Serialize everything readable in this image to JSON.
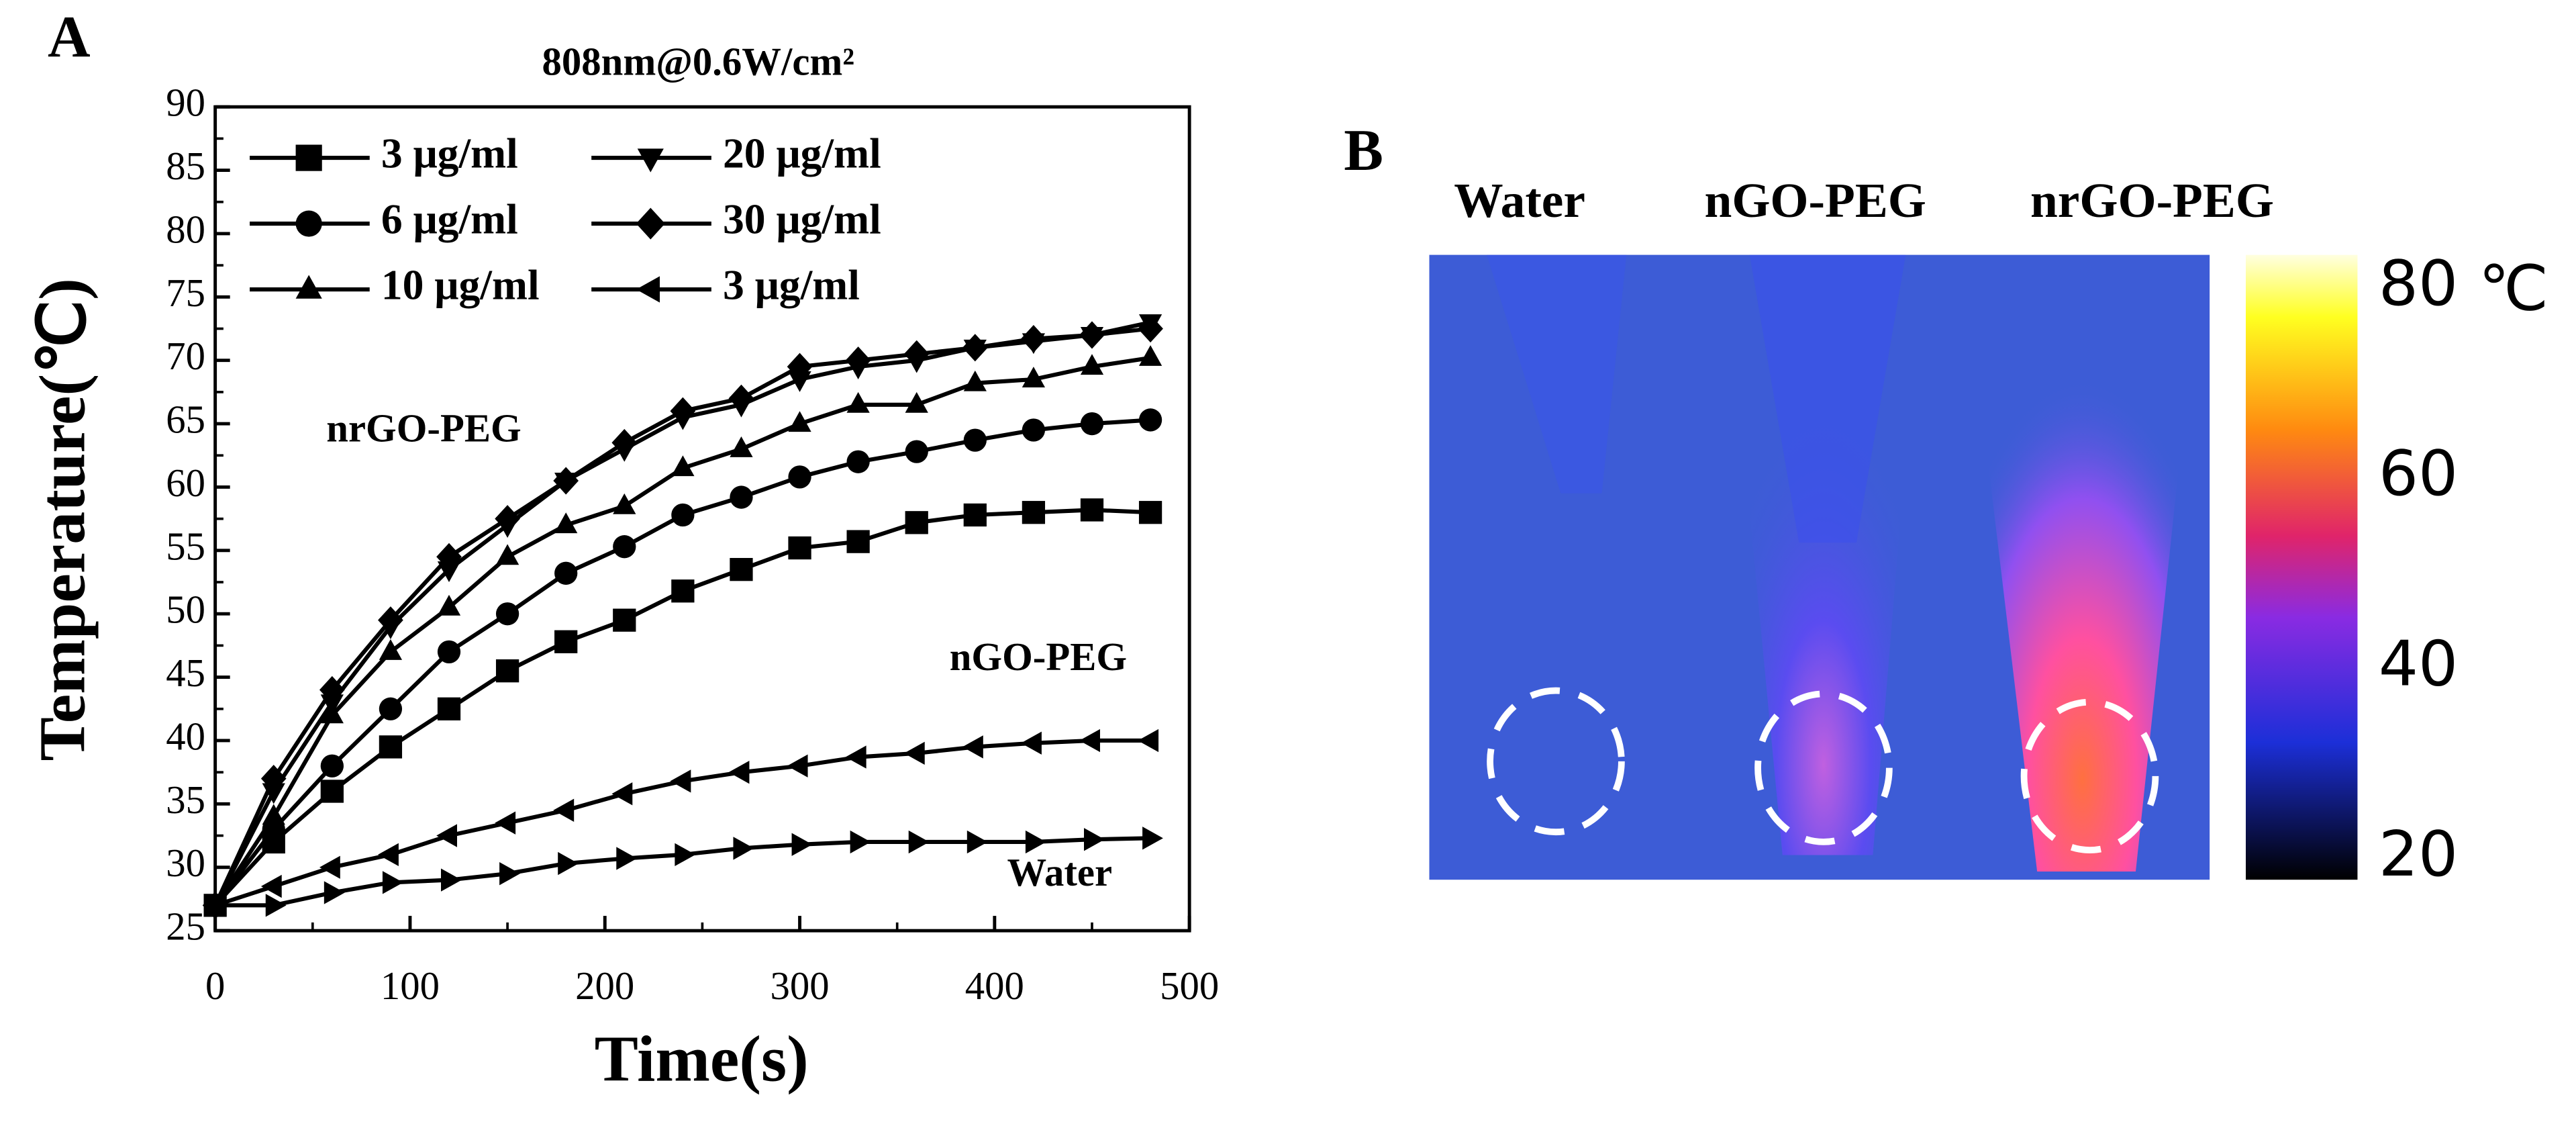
{
  "panel_label": "A",
  "chart_data": {
    "type": "line",
    "title": "808nm@0.6W/cm²",
    "x_label": "Time(s)",
    "y_label": "Temperature(℃)",
    "x": [
      0,
      30,
      60,
      90,
      120,
      150,
      180,
      210,
      240,
      270,
      300,
      330,
      360,
      390,
      420,
      450,
      480
    ],
    "series": [
      {
        "name": "3 μg/ml",
        "color": "#000000",
        "marker": "square",
        "values": [
          27,
          32,
          36,
          39.5,
          42.5,
          45.5,
          47.8,
          49.5,
          51.8,
          53.5,
          55.2,
          55.7,
          57.2,
          57.8,
          58,
          58.2,
          58
        ]
      },
      {
        "name": "6 μg/ml",
        "color": "#000000",
        "marker": "circle",
        "values": [
          27,
          33,
          38,
          42.5,
          47,
          50,
          53.2,
          55.3,
          57.8,
          59.2,
          60.8,
          62,
          62.8,
          63.7,
          64.5,
          65,
          65.3
        ]
      },
      {
        "name": "10 μg/ml",
        "color": "#000000",
        "marker": "triangle-up",
        "values": [
          27,
          34,
          42,
          47,
          50.5,
          54.5,
          57,
          58.5,
          61.5,
          63,
          65,
          66.5,
          66.5,
          68.2,
          68.5,
          69.5,
          70.2
        ]
      },
      {
        "name": "20 μg/ml",
        "color": "#000000",
        "marker": "triangle-down",
        "values": [
          27,
          36,
          43,
          49,
          53.5,
          57,
          60.5,
          63,
          65.5,
          66.5,
          68.5,
          69.5,
          70,
          71,
          71.5,
          72,
          73
        ]
      },
      {
        "name": "30 μg/ml",
        "color": "#000000",
        "marker": "diamond",
        "values": [
          27,
          37,
          44,
          49.5,
          54.5,
          57.5,
          60.5,
          63.5,
          66,
          67,
          69.5,
          70,
          70.5,
          71,
          71.7,
          72,
          72.5
        ]
      },
      {
        "name": "3 μg/ml",
        "color": "#000000",
        "marker": "triangle-left",
        "values": [
          27,
          28.5,
          30,
          31,
          32.5,
          33.5,
          34.5,
          35.8,
          36.8,
          37.5,
          38,
          38.7,
          39,
          39.5,
          39.8,
          40,
          40
        ]
      },
      {
        "color": "#000000",
        "marker": "triangle-right",
        "values": [
          27,
          27,
          28,
          28.8,
          29,
          29.5,
          30.3,
          30.7,
          31,
          31.5,
          31.8,
          32,
          32,
          32,
          32,
          32.2,
          32.3
        ]
      }
    ],
    "annotations": [
      "nrGO-PEG",
      "nGO-PEG",
      "Water"
    ],
    "xlim": [
      0,
      500
    ],
    "xticks": [
      0,
      100,
      200,
      300,
      400,
      500
    ],
    "ylim": [
      25,
      90
    ],
    "yticks": [
      25,
      30,
      35,
      40,
      45,
      50,
      55,
      60,
      65,
      70,
      75,
      80,
      85,
      90
    ]
  },
  "image_panel": {
    "label": "B",
    "columns": [
      "Water",
      "nGO-PEG",
      "nrGO-PEG"
    ],
    "colorbar_ticks": [
      80,
      60,
      40,
      20
    ],
    "unit": "℃"
  }
}
